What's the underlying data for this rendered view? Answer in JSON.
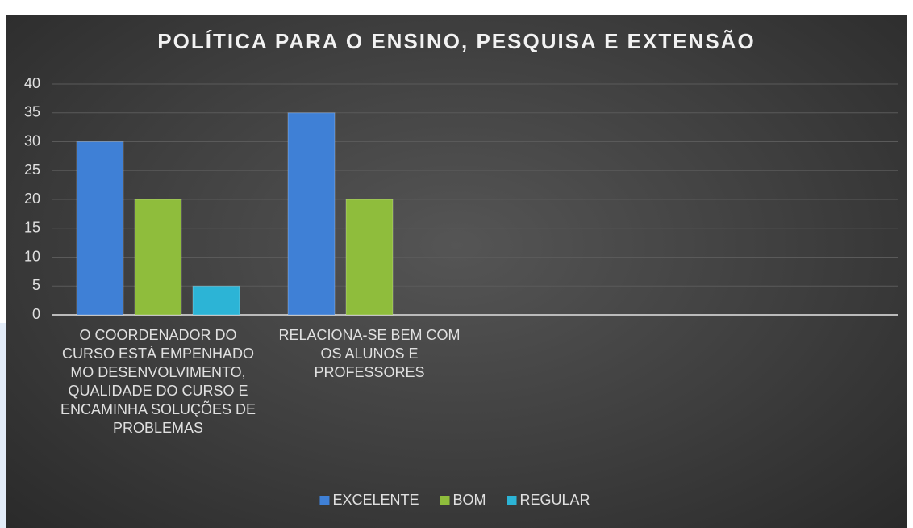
{
  "chart_data": {
    "type": "bar",
    "title": "POLÍTICA PARA O ENSINO, PESQUISA E EXTENSÃO",
    "categories": [
      "O COORDENADOR DO CURSO ESTÁ EMPENHADO MO DESENVOLVIMENTO, QUALIDADE DO CURSO E ENCAMINHA SOLUÇÕES DE PROBLEMAS",
      "RELACIONA-SE BEM COM OS ALUNOS E PROFESSORES",
      null,
      null
    ],
    "series": [
      {
        "name": "EXCELENTE",
        "color": "#3f80d6",
        "values": [
          30,
          35,
          null,
          null
        ]
      },
      {
        "name": "BOM",
        "color": "#8fbd3c",
        "values": [
          20,
          20,
          null,
          null
        ]
      },
      {
        "name": "REGULAR",
        "color": "#2cb4d6",
        "values": [
          5,
          null,
          null,
          null
        ]
      }
    ],
    "ylim": [
      0,
      40
    ],
    "yticks": [
      0,
      5,
      10,
      15,
      20,
      25,
      30,
      35,
      40
    ],
    "grid": true,
    "legend": "bottom"
  }
}
